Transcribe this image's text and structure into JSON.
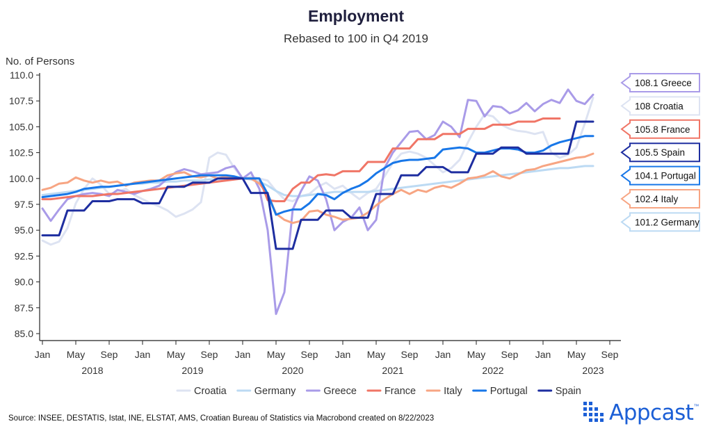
{
  "title": "Employment",
  "subtitle": "Rebased to 100 in Q4 2019",
  "source": "Source: INSEE, DESTATIS, Istat, INE, ELSTAT, AMS, Croatian Bureau of Statistics via Macrobond created on 8/22/2023",
  "brand": {
    "name": "Appcast",
    "tm": "™",
    "color": "#1c5fd6"
  },
  "chart_data": {
    "type": "line",
    "title": "Employment",
    "subtitle": "Rebased to 100 in Q4 2019",
    "ylabel": "No. of Persons",
    "xlabel": "",
    "ylim": [
      85,
      110
    ],
    "yticks": [
      "85.0",
      "87.5",
      "90.0",
      "92.5",
      "95.0",
      "97.5",
      "100.0",
      "102.5",
      "105.0",
      "107.5",
      "110.0"
    ],
    "x_start": "Jan 2018",
    "x_range_months": [
      0,
      68
    ],
    "month_ticks": [
      {
        "m": 0,
        "label": "Jan"
      },
      {
        "m": 4,
        "label": "May"
      },
      {
        "m": 8,
        "label": "Sep"
      },
      {
        "m": 12,
        "label": "Jan"
      },
      {
        "m": 16,
        "label": "May"
      },
      {
        "m": 20,
        "label": "Sep"
      },
      {
        "m": 24,
        "label": "Jan"
      },
      {
        "m": 28,
        "label": "May"
      },
      {
        "m": 32,
        "label": "Sep"
      },
      {
        "m": 36,
        "label": "Jan"
      },
      {
        "m": 40,
        "label": "May"
      },
      {
        "m": 44,
        "label": "Sep"
      },
      {
        "m": 48,
        "label": "Jan"
      },
      {
        "m": 52,
        "label": "May"
      },
      {
        "m": 56,
        "label": "Sep"
      },
      {
        "m": 60,
        "label": "Jan"
      },
      {
        "m": 64,
        "label": "May"
      },
      {
        "m": 68,
        "label": "Sep"
      }
    ],
    "year_labels": [
      {
        "m": 6,
        "label": "2018"
      },
      {
        "m": 18,
        "label": "2019"
      },
      {
        "m": 30,
        "label": "2020"
      },
      {
        "m": 42,
        "label": "2021"
      },
      {
        "m": 54,
        "label": "2022"
      },
      {
        "m": 66,
        "label": "2023"
      }
    ],
    "series": [
      {
        "name": "Croatia",
        "color": "#dde3f2",
        "end_label": "108 Croatia",
        "values": [
          94.0,
          93.6,
          93.9,
          95.2,
          97.6,
          99.0,
          100.0,
          99.4,
          98.5,
          98.7,
          99.0,
          98.4,
          98.0,
          97.6,
          97.3,
          96.9,
          96.3,
          96.6,
          97.0,
          97.7,
          102.0,
          102.5,
          102.3,
          101.0,
          100.0,
          100.2,
          100.0,
          99.8,
          98.8,
          98.0,
          97.8,
          98.3,
          98.5,
          99.2,
          99.6,
          99.0,
          99.3,
          98.6,
          98.0,
          98.6,
          99.0,
          100.2,
          101.5,
          102.4,
          102.6,
          102.4,
          102.0,
          101.3,
          100.6,
          101.0,
          101.8,
          103.5,
          105.0,
          106.2,
          106.0,
          105.2,
          104.8,
          104.6,
          104.5,
          104.3,
          104.5,
          102.5,
          102.0,
          102.3,
          103.0,
          105.3,
          107.8
        ]
      },
      {
        "name": "Germany",
        "color": "#bcdaf3",
        "end_label": "101.2 Germany",
        "values": [
          98.4,
          98.5,
          98.6,
          98.7,
          98.8,
          98.9,
          99.0,
          99.1,
          99.2,
          99.3,
          99.4,
          99.5,
          99.5,
          99.6,
          99.6,
          99.7,
          99.7,
          99.8,
          99.8,
          99.8,
          99.9,
          99.9,
          100.0,
          100.0,
          100.0,
          99.9,
          99.7,
          99.3,
          98.8,
          98.4,
          98.3,
          98.3,
          98.4,
          98.5,
          98.6,
          98.7,
          98.7,
          98.7,
          98.7,
          98.7,
          98.8,
          98.9,
          99.0,
          99.1,
          99.2,
          99.3,
          99.4,
          99.5,
          99.6,
          99.7,
          99.8,
          99.9,
          100.0,
          100.1,
          100.2,
          100.3,
          100.4,
          100.5,
          100.6,
          100.7,
          100.8,
          100.9,
          101.0,
          101.0,
          101.1,
          101.2,
          101.2
        ]
      },
      {
        "name": "Greece",
        "color": "#a99be8",
        "end_label": "108.1 Greece",
        "values": [
          97.1,
          95.9,
          97.0,
          98.0,
          98.3,
          98.5,
          98.6,
          98.5,
          98.3,
          98.9,
          98.7,
          98.5,
          98.8,
          99.0,
          99.3,
          100.0,
          100.6,
          100.9,
          100.7,
          100.4,
          100.5,
          100.6,
          101.0,
          101.2,
          100.0,
          100.6,
          99.0,
          95.0,
          86.9,
          89.0,
          97.0,
          98.8,
          100.2,
          99.8,
          98.0,
          95.0,
          95.8,
          96.2,
          97.2,
          95.0,
          96.0,
          101.0,
          102.5,
          103.5,
          104.5,
          104.6,
          103.8,
          104.2,
          105.5,
          105.0,
          104.0,
          107.6,
          107.5,
          106.0,
          107.0,
          106.9,
          106.3,
          106.6,
          107.3,
          106.5,
          107.2,
          107.6,
          107.3,
          108.6,
          107.5,
          107.2,
          108.1
        ]
      },
      {
        "name": "France",
        "color": "#f07566",
        "end_label": "105.8 France",
        "values": [
          98.0,
          98.0,
          98.1,
          98.2,
          98.3,
          98.3,
          98.3,
          98.4,
          98.5,
          98.5,
          98.6,
          98.7,
          98.8,
          98.9,
          99.0,
          99.1,
          99.2,
          99.3,
          99.4,
          99.5,
          99.6,
          99.7,
          99.8,
          99.9,
          100.0,
          100.0,
          100.0,
          97.9,
          97.8,
          97.8,
          99.0,
          99.6,
          99.6,
          100.3,
          100.4,
          100.3,
          100.7,
          100.7,
          100.7,
          101.6,
          101.6,
          101.6,
          102.9,
          102.9,
          102.9,
          103.8,
          103.8,
          103.8,
          104.3,
          104.3,
          104.3,
          104.8,
          104.8,
          104.8,
          105.2,
          105.2,
          105.2,
          105.5,
          105.5,
          105.5,
          105.8,
          105.8,
          105.8
        ]
      },
      {
        "name": "Italy",
        "color": "#f7a583",
        "end_label": "102.4 Italy",
        "values": [
          98.9,
          99.1,
          99.5,
          99.6,
          100.1,
          99.8,
          99.6,
          99.8,
          99.6,
          99.7,
          99.3,
          99.6,
          99.7,
          99.8,
          99.8,
          100.3,
          100.5,
          100.6,
          100.2,
          100.1,
          100.3,
          100.0,
          100.2,
          100.1,
          100.0,
          100.0,
          99.5,
          98.5,
          96.6,
          96.0,
          95.7,
          95.9,
          96.8,
          96.9,
          96.5,
          96.3,
          96.0,
          96.1,
          96.2,
          96.7,
          97.4,
          98.0,
          98.5,
          98.9,
          98.5,
          98.9,
          98.7,
          99.1,
          99.3,
          99.1,
          99.5,
          100.0,
          100.1,
          100.3,
          100.7,
          100.2,
          100.0,
          100.4,
          100.8,
          100.9,
          101.2,
          101.4,
          101.6,
          101.8,
          102.0,
          102.1,
          102.4
        ]
      },
      {
        "name": "Portugal",
        "color": "#1877e8",
        "end_label": "104.1 Portugal",
        "values": [
          98.2,
          98.3,
          98.4,
          98.5,
          98.7,
          99.0,
          99.1,
          99.2,
          99.2,
          99.3,
          99.4,
          99.5,
          99.6,
          99.7,
          99.8,
          99.9,
          100.0,
          100.1,
          100.2,
          100.3,
          100.3,
          100.3,
          100.3,
          100.2,
          100.0,
          100.0,
          100.0,
          98.5,
          96.5,
          96.8,
          97.0,
          97.0,
          97.6,
          98.5,
          98.4,
          98.0,
          98.6,
          99.0,
          99.3,
          99.8,
          100.5,
          101.0,
          101.5,
          101.7,
          101.8,
          101.8,
          101.9,
          102.0,
          102.8,
          102.9,
          103.0,
          102.9,
          102.5,
          102.5,
          102.7,
          102.9,
          102.9,
          102.8,
          102.5,
          102.5,
          102.7,
          103.2,
          103.5,
          103.7,
          103.9,
          104.1,
          104.1
        ]
      },
      {
        "name": "Spain",
        "color": "#1e2ea0",
        "end_label": "105.5 Spain",
        "values": [
          94.5,
          94.5,
          94.5,
          96.9,
          96.9,
          96.9,
          97.8,
          97.8,
          97.8,
          98.0,
          98.0,
          98.0,
          97.6,
          97.6,
          97.6,
          99.2,
          99.2,
          99.2,
          99.6,
          99.6,
          99.6,
          100.0,
          100.0,
          100.0,
          100.0,
          98.6,
          98.6,
          98.6,
          93.2,
          93.2,
          93.2,
          96.0,
          96.0,
          96.0,
          96.9,
          96.9,
          96.9,
          96.2,
          96.2,
          96.2,
          98.5,
          98.5,
          98.5,
          100.3,
          100.3,
          100.3,
          101.1,
          101.1,
          101.1,
          100.6,
          100.6,
          100.6,
          102.4,
          102.4,
          102.4,
          103.0,
          103.0,
          103.0,
          102.4,
          102.4,
          102.4,
          102.4,
          102.4,
          102.4,
          105.5,
          105.5,
          105.5
        ]
      }
    ],
    "end_label_order": [
      "Greece",
      "Croatia",
      "France",
      "Spain",
      "Portugal",
      "Italy",
      "Germany"
    ],
    "legend_order": [
      "Croatia",
      "Germany",
      "Greece",
      "France",
      "Italy",
      "Portugal",
      "Spain"
    ],
    "legend_position": "bottom"
  }
}
